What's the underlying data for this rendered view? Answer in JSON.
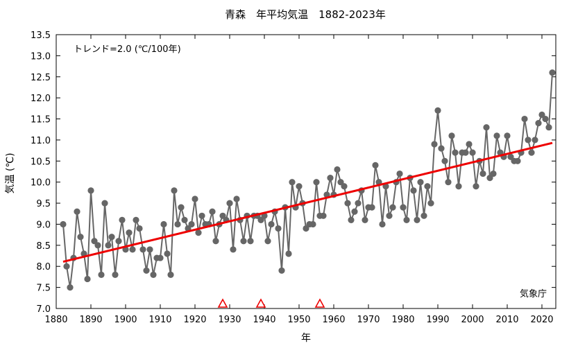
{
  "chart_data": {
    "type": "line",
    "title": "青森　年平均気温　1882-2023年",
    "xlabel": "年",
    "ylabel": "気温 (℃)",
    "trend_label": "トレンド=2.0 (℃/100年)",
    "source_label": "気象庁",
    "xlim": [
      1880,
      2024
    ],
    "ylim": [
      7.0,
      13.5
    ],
    "x_ticks": [
      1880,
      1890,
      1900,
      1910,
      1920,
      1930,
      1940,
      1950,
      1960,
      1970,
      1980,
      1990,
      2000,
      2010,
      2020
    ],
    "y_ticks": [
      7.0,
      7.5,
      8.0,
      8.5,
      9.0,
      9.5,
      10.0,
      10.5,
      11.0,
      11.5,
      12.0,
      12.5,
      13.0,
      13.5
    ],
    "grid": false,
    "series": [
      {
        "x": [
          1882,
          1883,
          1884,
          1885,
          1886,
          1887,
          1888,
          1889,
          1890,
          1891,
          1892,
          1893,
          1894,
          1895,
          1896,
          1897,
          1898,
          1899,
          1900,
          1901,
          1902,
          1903,
          1904,
          1905,
          1906,
          1907,
          1908,
          1909,
          1910,
          1911,
          1912,
          1913,
          1914,
          1915,
          1916,
          1917,
          1918,
          1919,
          1920,
          1921,
          1922,
          1923,
          1924,
          1925,
          1926,
          1927,
          1928,
          1929,
          1930,
          1931,
          1932,
          1933,
          1934,
          1935,
          1936,
          1937,
          1938,
          1939,
          1940,
          1941,
          1942,
          1943,
          1944,
          1945,
          1946,
          1947,
          1948,
          1949,
          1950,
          1951,
          1952,
          1953,
          1954,
          1955,
          1956,
          1957,
          1958,
          1959,
          1960,
          1961,
          1962,
          1963,
          1964,
          1965,
          1966,
          1967,
          1968,
          1969,
          1970,
          1971,
          1972,
          1973,
          1974,
          1975,
          1976,
          1977,
          1978,
          1979,
          1980,
          1981,
          1982,
          1983,
          1984,
          1985,
          1986,
          1987,
          1988,
          1989,
          1990,
          1991,
          1992,
          1993,
          1994,
          1995,
          1996,
          1997,
          1998,
          1999,
          2000,
          2001,
          2002,
          2003,
          2004,
          2005,
          2006,
          2007,
          2008,
          2009,
          2010,
          2011,
          2012,
          2013,
          2014,
          2015,
          2016,
          2017,
          2018,
          2019,
          2020,
          2021,
          2022,
          2023
        ],
        "values": [
          9.0,
          8.0,
          7.5,
          8.2,
          9.3,
          8.7,
          8.3,
          7.7,
          9.8,
          8.6,
          8.5,
          7.8,
          9.5,
          8.5,
          8.7,
          7.8,
          8.6,
          9.1,
          8.4,
          8.8,
          8.4,
          9.1,
          8.9,
          8.4,
          7.9,
          8.4,
          7.8,
          8.2,
          8.2,
          9.0,
          8.3,
          7.8,
          9.8,
          9.0,
          9.4,
          9.1,
          8.9,
          9.0,
          9.6,
          8.8,
          9.2,
          9.0,
          9.0,
          9.3,
          8.6,
          9.0,
          9.2,
          9.1,
          9.5,
          8.4,
          9.6,
          9.1,
          8.6,
          9.2,
          8.6,
          9.2,
          9.2,
          9.1,
          9.2,
          8.6,
          9.0,
          9.3,
          8.9,
          7.9,
          9.4,
          8.3,
          10.0,
          9.4,
          9.9,
          9.5,
          8.9,
          9.0,
          9.0,
          10.0,
          9.2,
          9.2,
          9.7,
          10.1,
          9.7,
          10.3,
          10.0,
          9.9,
          9.5,
          9.1,
          9.3,
          9.5,
          9.8,
          9.1,
          9.4,
          9.4,
          10.4,
          10.0,
          9.0,
          9.9,
          9.2,
          9.4,
          10.0,
          10.2,
          9.4,
          9.1,
          10.1,
          9.8,
          9.1,
          10.0,
          9.2,
          9.9,
          9.5,
          10.9,
          11.7,
          10.8,
          10.5,
          10.0,
          11.1,
          10.7,
          9.9,
          10.7,
          10.7,
          10.9,
          10.7,
          9.9,
          10.5,
          10.2,
          11.3,
          10.1,
          10.2,
          11.1,
          10.7,
          10.6,
          11.1,
          10.6,
          10.5,
          10.5,
          10.7,
          11.5,
          11.0,
          10.7,
          11.0,
          11.4,
          11.6,
          11.5,
          11.3,
          12.6
        ],
        "color": "#666666"
      }
    ],
    "trend": {
      "x": [
        1882,
        2023
      ],
      "y": [
        8.11,
        10.93
      ],
      "color": "#ee0000"
    },
    "station_change_years": [
      1928,
      1939,
      1956
    ],
    "marker_color": "#ee0000"
  }
}
